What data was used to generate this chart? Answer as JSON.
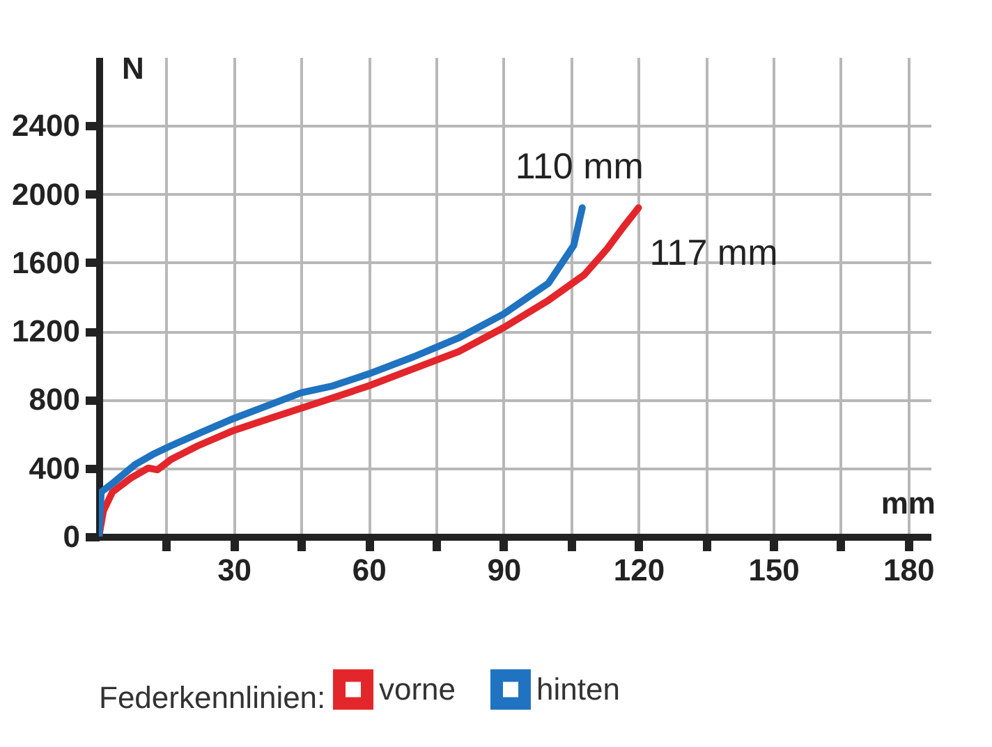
{
  "chart_data": {
    "type": "line",
    "xlabel": "mm",
    "ylabel": "N",
    "legend_title": "Federkennlinien:",
    "xlim": [
      0,
      185
    ],
    "ylim": [
      0,
      2800
    ],
    "xticks": [
      {
        "value": 15,
        "label": null
      },
      30,
      {
        "value": 45,
        "label": null
      },
      60,
      {
        "value": 75,
        "label": null
      },
      90,
      {
        "value": 105,
        "label": null
      },
      120,
      {
        "value": 135,
        "label": null
      },
      150,
      {
        "value": 165,
        "label": null
      },
      180
    ],
    "yticks": [
      0,
      400,
      800,
      1200,
      1600,
      2000,
      2400
    ],
    "grid": true,
    "legend": "bottom",
    "line_style": "solid",
    "series": [
      {
        "name": "vorne",
        "color": "#e3262b",
        "x": [
          0,
          1,
          3,
          7,
          11,
          13,
          16,
          22,
          30,
          38,
          45,
          52,
          60,
          70,
          80,
          90,
          100,
          108,
          113,
          117,
          120
        ],
        "values": [
          0,
          150,
          260,
          340,
          400,
          390,
          450,
          530,
          620,
          690,
          750,
          810,
          880,
          980,
          1080,
          1220,
          1380,
          1530,
          1680,
          1820,
          1920
        ]
      },
      {
        "name": "hinten",
        "color": "#1f73c0",
        "x": [
          0,
          0.5,
          3,
          8,
          12,
          16,
          22,
          30,
          38,
          45,
          52,
          60,
          70,
          80,
          90,
          100,
          105.6,
          107.5
        ],
        "values": [
          0,
          260,
          310,
          420,
          480,
          530,
          600,
          690,
          770,
          840,
          880,
          950,
          1050,
          1160,
          1300,
          1480,
          1700,
          1920
        ]
      }
    ],
    "annotations": [
      {
        "text": "110 mm",
        "x": 107.5,
        "y": 1920
      },
      {
        "text": "117 mm",
        "x": 120,
        "y": 1920
      }
    ]
  }
}
